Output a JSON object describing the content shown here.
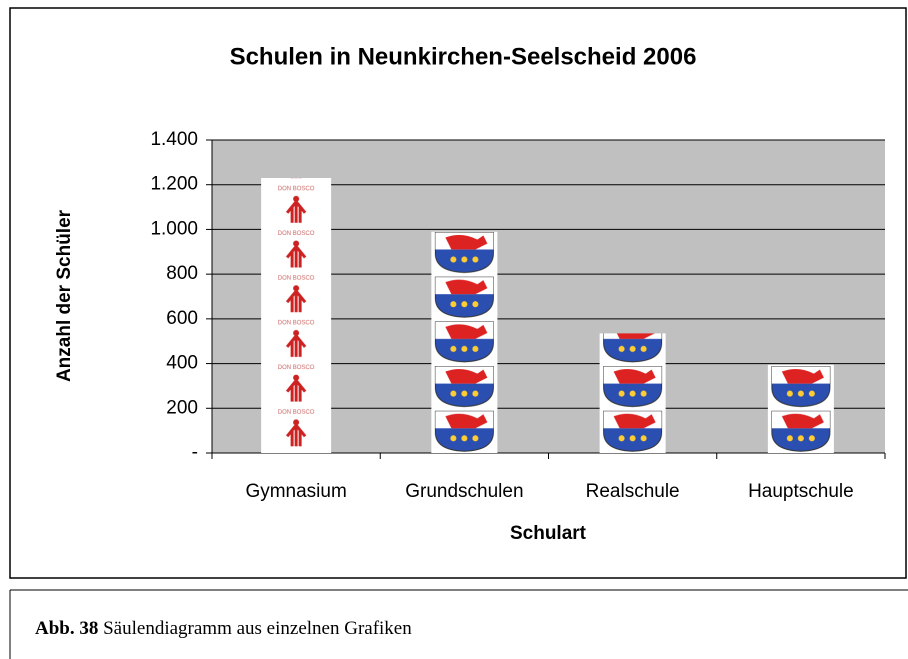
{
  "chart_data": {
    "type": "bar",
    "title": "Schulen in Neunkirchen-Seelscheid 2006",
    "categories": [
      "Gymnasium",
      "Grundschulen",
      "Realschule",
      "Hauptschule"
    ],
    "values": [
      1230,
      990,
      535,
      395
    ],
    "x_label": "Schulart",
    "y_label": "Anzahl der Schüler",
    "ylim": [
      0,
      1400
    ],
    "yticks": [
      {
        "value": 0,
        "label": "-"
      },
      200,
      400,
      600,
      800,
      {
        "value": 1000,
        "label": "1.000"
      },
      {
        "value": 1200,
        "label": "1.200"
      },
      {
        "value": 1400,
        "label": "1.400"
      }
    ],
    "grid": true,
    "plot_color": "#c0c0c0"
  },
  "caption": {
    "label": "Abb. 38",
    "text": "Säulendiagramm aus einzelnen Grafiken"
  }
}
